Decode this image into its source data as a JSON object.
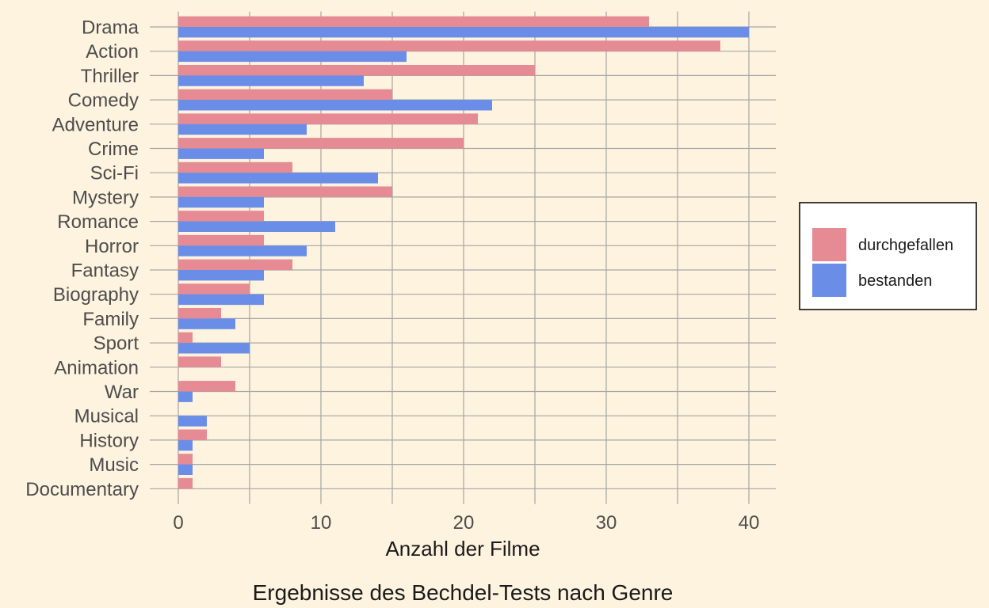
{
  "chart_data": {
    "type": "bar",
    "orientation": "horizontal",
    "categories": [
      "Drama",
      "Action",
      "Thriller",
      "Comedy",
      "Adventure",
      "Crime",
      "Sci-Fi",
      "Mystery",
      "Romance",
      "Horror",
      "Fantasy",
      "Biography",
      "Family",
      "Sport",
      "Animation",
      "War",
      "Musical",
      "History",
      "Music",
      "Documentary"
    ],
    "series": [
      {
        "name": "durchgefallen",
        "color": "#e68a94",
        "values": [
          33,
          38,
          25,
          15,
          21,
          20,
          8,
          15,
          6,
          6,
          8,
          5,
          3,
          1,
          3,
          4,
          0,
          2,
          1,
          1
        ]
      },
      {
        "name": "bestanden",
        "color": "#6a8de8",
        "values": [
          40,
          16,
          13,
          22,
          9,
          6,
          14,
          6,
          11,
          9,
          6,
          6,
          4,
          5,
          0,
          1,
          2,
          1,
          1,
          0
        ]
      }
    ],
    "xlabel": "Anzahl der Filme",
    "caption": "Ergebnisse des Bechdel-Tests nach Genre",
    "xlim": [
      0,
      42
    ],
    "x_ticks": [
      0,
      10,
      20,
      30,
      40
    ],
    "grid": true,
    "legend_position": "right"
  }
}
